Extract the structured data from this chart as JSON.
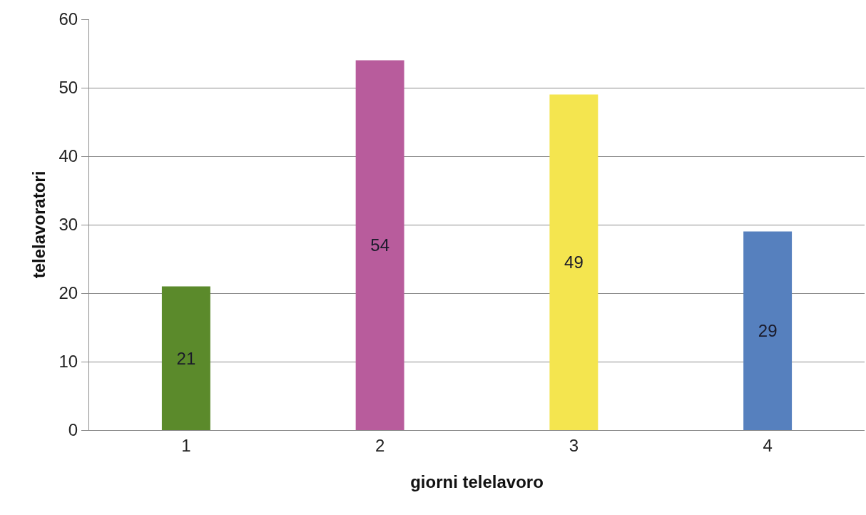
{
  "chart_data": {
    "type": "bar",
    "xlabel": "giorni telelavoro",
    "ylabel": "telelavoratori",
    "categories": [
      "1",
      "2",
      "3",
      "4"
    ],
    "values": [
      21,
      54,
      49,
      29
    ],
    "colors": [
      "#5b8a2b",
      "#b85c9c",
      "#f4e54f",
      "#5680be"
    ],
    "ylim": [
      0,
      60
    ],
    "yticks": [
      0,
      10,
      20,
      30,
      40,
      50,
      60
    ],
    "grid": "y",
    "data_labels": true
  }
}
